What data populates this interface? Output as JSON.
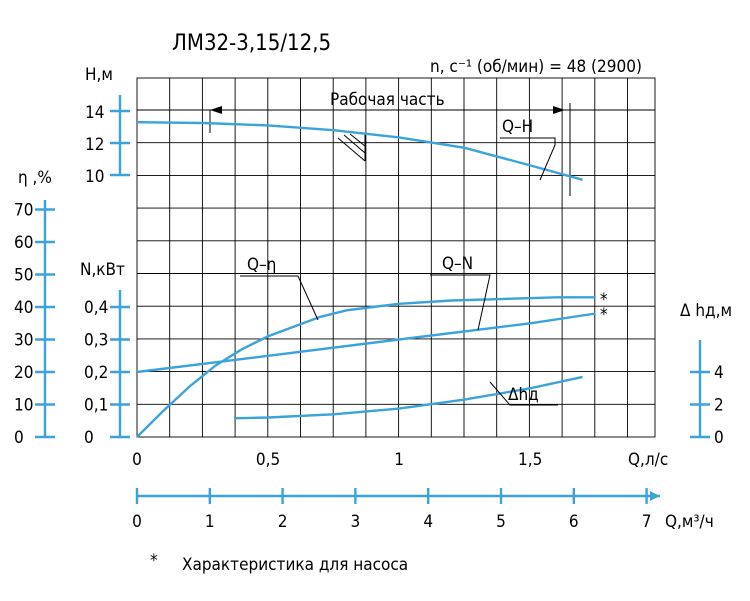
{
  "title": "ЛМ32-3,15/12,5",
  "speed_label": "n, c⁻¹ (об/мин) = 48 (2900)",
  "working_range_label": "Рабочая часть",
  "footnote": {
    "mark": "*",
    "text": "Характеристика для насоса"
  },
  "axes": {
    "H": {
      "label": "Н,м",
      "ticks": [
        "14",
        "12",
        "10"
      ]
    },
    "eta": {
      "label": "η ,%",
      "ticks": [
        "70",
        "60",
        "50",
        "40",
        "30",
        "20",
        "10",
        "0"
      ]
    },
    "N": {
      "label": "N,кВт",
      "ticks": [
        "0,4",
        "0,3",
        "0,2",
        "0,1",
        "0"
      ]
    },
    "dh": {
      "label": "Δ hд,м",
      "ticks": [
        "4",
        "2",
        "0"
      ]
    },
    "Q_ls": {
      "label": "Q,л/с",
      "ticks": [
        "0",
        "0,5",
        "1",
        "1,5"
      ]
    },
    "Q_m3h": {
      "label": "Q,м³/ч",
      "ticks": [
        "0",
        "1",
        "2",
        "3",
        "4",
        "5",
        "6",
        "7"
      ]
    }
  },
  "curve_labels": {
    "QH": "Q–H",
    "Qeta": "Q–η",
    "QN": "Q–N",
    "dh": "Δhд",
    "star1": "*",
    "star2": "*"
  },
  "colors": {
    "curve": "#3ba3db",
    "grid": "#000000"
  },
  "chart_data": {
    "type": "line",
    "x_unit": "Q, л/с",
    "xlim": [
      0,
      1.75
    ],
    "series": [
      {
        "name": "Q–H",
        "y_unit": "м",
        "x": [
          0,
          0.25,
          0.5,
          0.75,
          1.0,
          1.25,
          1.5,
          1.7
        ],
        "y": [
          13.3,
          13.25,
          13.1,
          12.8,
          12.35,
          11.7,
          10.6,
          9.7
        ]
      },
      {
        "name": "Q–η",
        "y_unit": "%",
        "x": [
          0,
          0.1,
          0.2,
          0.3,
          0.4,
          0.5,
          0.6,
          0.7,
          0.8,
          0.9,
          1.0,
          1.2,
          1.4,
          1.6,
          1.75
        ],
        "y": [
          0,
          8,
          15.5,
          22,
          27,
          31,
          34,
          37,
          39,
          40,
          41,
          42,
          42.5,
          43,
          43
        ]
      },
      {
        "name": "Q–N",
        "y_unit": "кВт",
        "x": [
          0,
          0.5,
          1.0,
          1.5,
          1.75
        ],
        "y": [
          0.2,
          0.25,
          0.3,
          0.35,
          0.38
        ]
      },
      {
        "name": "Δhд",
        "y_unit": "м",
        "x": [
          0.37,
          0.5,
          0.75,
          1.0,
          1.25,
          1.5,
          1.7
        ],
        "y": [
          1.15,
          1.2,
          1.4,
          1.75,
          2.3,
          3.0,
          3.7
        ]
      }
    ]
  }
}
